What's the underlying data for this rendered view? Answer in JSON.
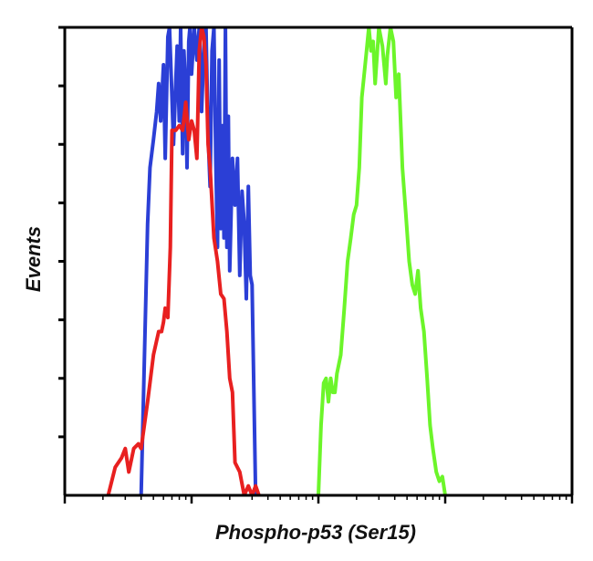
{
  "chart_data": {
    "type": "line",
    "title": "",
    "xlabel": "Phospho-p53 (Ser15)",
    "ylabel": "Events",
    "x_scale": "log",
    "xlim": [
      10,
      100000
    ],
    "ylim": [
      0,
      100
    ],
    "grid": false,
    "legend": "none",
    "series": [
      {
        "color": "#2b3fd6",
        "x": [
          40,
          45,
          47,
          50,
          53,
          55,
          57,
          60,
          62,
          65,
          67,
          70,
          72,
          75,
          77,
          80,
          82,
          85,
          87,
          90,
          92,
          95,
          97,
          100,
          105,
          110,
          115,
          120,
          125,
          130,
          135,
          140,
          145,
          150,
          155,
          160,
          165,
          170,
          175,
          180,
          185,
          190,
          195,
          200,
          210,
          220,
          230,
          240,
          250,
          260,
          270,
          280,
          290,
          300,
          320
        ],
        "y": [
          0,
          58,
          70,
          76,
          82,
          88,
          80,
          92,
          72,
          98,
          100,
          85,
          75,
          88,
          96,
          80,
          100,
          73,
          95,
          86,
          70,
          97,
          100,
          90,
          100,
          93,
          100,
          82,
          96,
          100,
          77,
          66,
          95,
          100,
          72,
          53,
          93,
          57,
          79,
          55,
          100,
          53,
          81,
          48,
          72,
          62,
          72,
          47,
          65,
          58,
          42,
          66,
          47,
          45,
          0
        ]
      },
      {
        "color": "#e82020",
        "x": [
          22,
          25,
          28,
          30,
          32,
          35,
          38,
          40,
          45,
          50,
          55,
          58,
          60,
          62,
          65,
          68,
          70,
          75,
          80,
          85,
          90,
          95,
          100,
          105,
          110,
          115,
          120,
          125,
          130,
          135,
          140,
          150,
          160,
          170,
          180,
          190,
          200,
          210,
          220,
          240,
          260,
          280,
          300,
          320,
          340
        ],
        "y": [
          0,
          6,
          8,
          10,
          5,
          10,
          11,
          10,
          20,
          30,
          35,
          35,
          37,
          40,
          38,
          53,
          78,
          78,
          79,
          78,
          84,
          76,
          80,
          78,
          72,
          95,
          100,
          98,
          92,
          75,
          70,
          55,
          50,
          43,
          42,
          35,
          25,
          22,
          7,
          5,
          0,
          2,
          0,
          2,
          0
        ]
      },
      {
        "color": "#6cf52a",
        "x": [
          1000,
          1050,
          1100,
          1150,
          1200,
          1250,
          1300,
          1350,
          1400,
          1500,
          1600,
          1700,
          1800,
          1900,
          2000,
          2100,
          2200,
          2400,
          2500,
          2600,
          2700,
          2800,
          2900,
          3000,
          3200,
          3400,
          3500,
          3700,
          3900,
          4100,
          4300,
          4600,
          4900,
          5200,
          5500,
          5800,
          6100,
          6400,
          6800,
          7200,
          7600,
          8000,
          8500,
          9000,
          9500,
          10000
        ],
        "y": [
          0,
          15,
          24,
          25,
          20,
          25,
          22,
          22,
          26,
          30,
          40,
          50,
          55,
          60,
          62,
          70,
          85,
          95,
          100,
          95,
          97,
          88,
          94,
          100,
          96,
          88,
          94,
          100,
          97,
          85,
          90,
          70,
          60,
          50,
          45,
          43,
          48,
          40,
          35,
          25,
          15,
          10,
          5,
          3,
          4,
          0
        ]
      }
    ]
  }
}
